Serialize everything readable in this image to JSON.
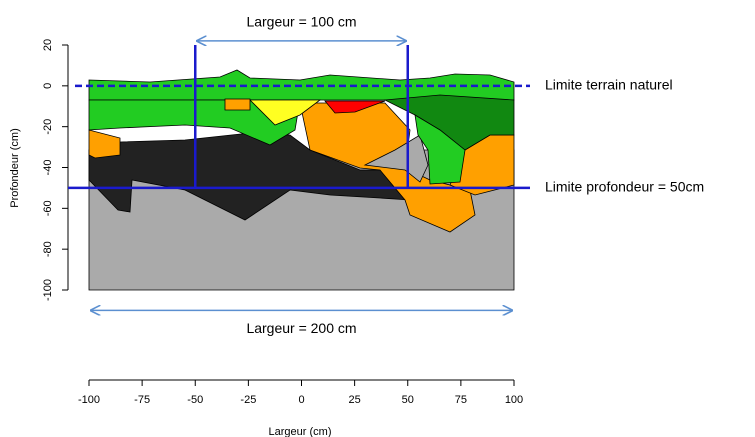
{
  "chart_data": {
    "type": "profile",
    "x_label": "Largeur (cm)",
    "y_label": "Profondeur (cm)",
    "xlim": [
      -100,
      100
    ],
    "xticks": [
      -100,
      -75,
      -50,
      -25,
      0,
      25,
      50,
      75,
      100
    ],
    "ylim": [
      -100,
      20
    ],
    "yticks": [
      -100,
      -80,
      -60,
      -40,
      -20,
      0,
      20
    ],
    "line_color": "#1a1acc",
    "arrow_color": "#5b8fd0",
    "horizontal_annotations": [
      {
        "text": "Limite terrain naturel",
        "y": 0,
        "dashed": true
      },
      {
        "text": "Limite profondeur = 50cm",
        "y": -50,
        "dashed": false
      }
    ],
    "width_annotations": [
      {
        "text": "Largeur = 100 cm",
        "x": [
          -50,
          50
        ],
        "y": 22
      },
      {
        "text": "Largeur = 200 cm",
        "x": [
          -100,
          100
        ],
        "y": -110
      }
    ]
  }
}
